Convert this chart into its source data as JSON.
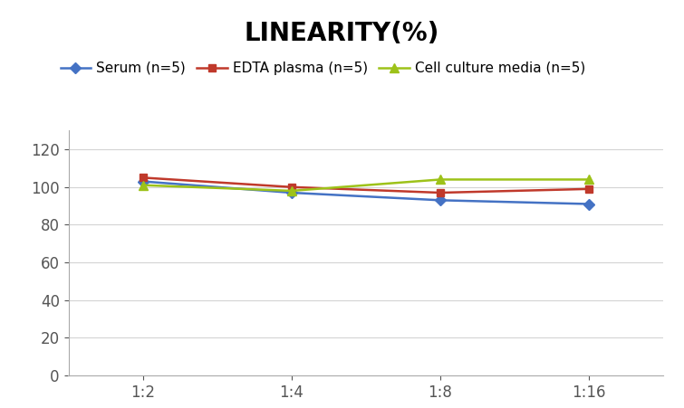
{
  "title": "LINEARITY(%)",
  "x_labels": [
    "1:2",
    "1:4",
    "1:8",
    "1:16"
  ],
  "x_positions": [
    0,
    1,
    2,
    3
  ],
  "series": [
    {
      "label": "Serum (n=5)",
      "values": [
        103,
        97,
        93,
        91
      ],
      "color": "#4472C4",
      "marker": "D",
      "markersize": 6,
      "linewidth": 1.8
    },
    {
      "label": "EDTA plasma (n=5)",
      "values": [
        105,
        100,
        97,
        99
      ],
      "color": "#C0392B",
      "marker": "s",
      "markersize": 6,
      "linewidth": 1.8
    },
    {
      "label": "Cell culture media (n=5)",
      "values": [
        101,
        98,
        104,
        104
      ],
      "color": "#9DC219",
      "marker": "^",
      "markersize": 7,
      "linewidth": 1.8
    }
  ],
  "ylim": [
    0,
    130
  ],
  "yticks": [
    0,
    20,
    40,
    60,
    80,
    100,
    120
  ],
  "background_color": "#ffffff",
  "grid_color": "#d3d3d3",
  "title_fontsize": 20,
  "legend_fontsize": 11,
  "tick_fontsize": 12
}
